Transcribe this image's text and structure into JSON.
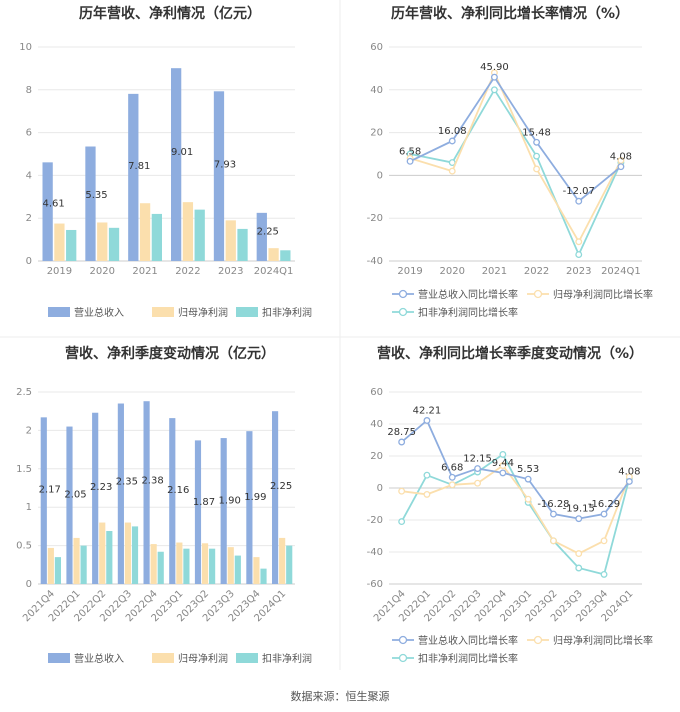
{
  "footer": {
    "source": "数据来源：恒生聚源"
  },
  "colors": {
    "revenue": "#8eaddf",
    "net_profit": "#fbdfad",
    "deducted_profit": "#8fd9d9",
    "growth_revenue_line": "#8eaddf",
    "growth_net_line": "#fbdfad",
    "growth_deducted_line": "#8fd9d9"
  },
  "chart_data": [
    {
      "type": "bar",
      "title": "历年营收、净利情况（亿元）",
      "categories": [
        "2019",
        "2020",
        "2021",
        "2022",
        "2023",
        "2024Q1"
      ],
      "ylim": [
        0,
        10
      ],
      "yticks": [
        0,
        2,
        4,
        6,
        8,
        10
      ],
      "series": [
        {
          "name": "营业总收入",
          "values": [
            4.61,
            5.35,
            7.81,
            9.01,
            7.93,
            2.25
          ],
          "labels": [
            "4.61",
            "5.35",
            "7.81",
            "9.01",
            "7.93",
            "2.25"
          ]
        },
        {
          "name": "归母净利润",
          "values": [
            1.75,
            1.8,
            2.7,
            2.75,
            1.9,
            0.6
          ]
        },
        {
          "name": "扣非净利润",
          "values": [
            1.45,
            1.55,
            2.2,
            2.4,
            1.5,
            0.5
          ]
        }
      ],
      "legend": "bottom"
    },
    {
      "type": "line",
      "title": "历年营收、净利同比增长率情况（%）",
      "categories": [
        "2019",
        "2020",
        "2021",
        "2022",
        "2023",
        "2024Q1"
      ],
      "ylim": [
        -40,
        60
      ],
      "yticks": [
        -40,
        -20,
        0,
        20,
        40,
        60
      ],
      "series": [
        {
          "name": "营业总收入同比增长率",
          "values": [
            6.58,
            16.08,
            45.9,
            15.48,
            -12.07,
            4.08
          ],
          "labels": [
            "6.58",
            "16.08",
            "45.90",
            "15.48",
            "-12.07",
            "4.08"
          ]
        },
        {
          "name": "归母净利润同比增长率",
          "values": [
            8,
            2,
            48,
            3,
            -31,
            7
          ]
        },
        {
          "name": "扣非净利润同比增长率",
          "values": [
            10,
            6,
            40,
            9,
            -37,
            6
          ]
        }
      ],
      "legend": "bottom"
    },
    {
      "type": "bar",
      "title": "营收、净利季度变动情况（亿元）",
      "categories": [
        "2021Q4",
        "2022Q1",
        "2022Q2",
        "2022Q3",
        "2022Q4",
        "2023Q1",
        "2023Q2",
        "2023Q3",
        "2023Q4",
        "2024Q1"
      ],
      "ylim": [
        0,
        2.5
      ],
      "yticks": [
        0,
        0.5,
        1,
        1.5,
        2,
        2.5
      ],
      "series": [
        {
          "name": "营业总收入",
          "values": [
            2.17,
            2.05,
            2.23,
            2.35,
            2.38,
            2.16,
            1.87,
            1.9,
            1.99,
            2.25
          ],
          "labels": [
            "2.17",
            "2.05",
            "2.23",
            "2.35",
            "2.38",
            "2.16",
            "1.87",
            "1.90",
            "1.99",
            "2.25"
          ]
        },
        {
          "name": "归母净利润",
          "values": [
            0.47,
            0.6,
            0.8,
            0.8,
            0.52,
            0.54,
            0.53,
            0.48,
            0.35,
            0.6
          ]
        },
        {
          "name": "扣非净利润",
          "values": [
            0.35,
            0.5,
            0.69,
            0.75,
            0.42,
            0.46,
            0.46,
            0.37,
            0.2,
            0.5
          ]
        }
      ],
      "legend": "bottom"
    },
    {
      "type": "line",
      "title": "营收、净利同比增长率季度变动情况（%）",
      "categories": [
        "2021Q4",
        "2022Q1",
        "2022Q2",
        "2022Q3",
        "2022Q4",
        "2023Q1",
        "2023Q2",
        "2023Q3",
        "2023Q4",
        "2024Q1"
      ],
      "ylim": [
        -60,
        60
      ],
      "yticks": [
        -60,
        -40,
        -20,
        0,
        20,
        40,
        60
      ],
      "series": [
        {
          "name": "营业总收入同比增长率",
          "values": [
            28.75,
            42.21,
            6.68,
            12.15,
            9.44,
            5.53,
            -16.28,
            -19.15,
            -16.29,
            4.08
          ],
          "labels": [
            "28.75",
            "42.21",
            "6.68",
            "12.15",
            "9.44",
            "5.53",
            "-16.28",
            "-19.15",
            "-16.29",
            "4.08"
          ]
        },
        {
          "name": "归母净利润同比增长率",
          "values": [
            -2,
            -4,
            2,
            3,
            14,
            -7,
            -33,
            -41,
            -33,
            7
          ]
        },
        {
          "name": "扣非净利润同比增长率",
          "values": [
            -21,
            8,
            2,
            10,
            21,
            -9,
            -33,
            -50,
            -54,
            6
          ]
        }
      ],
      "legend": "bottom"
    }
  ]
}
